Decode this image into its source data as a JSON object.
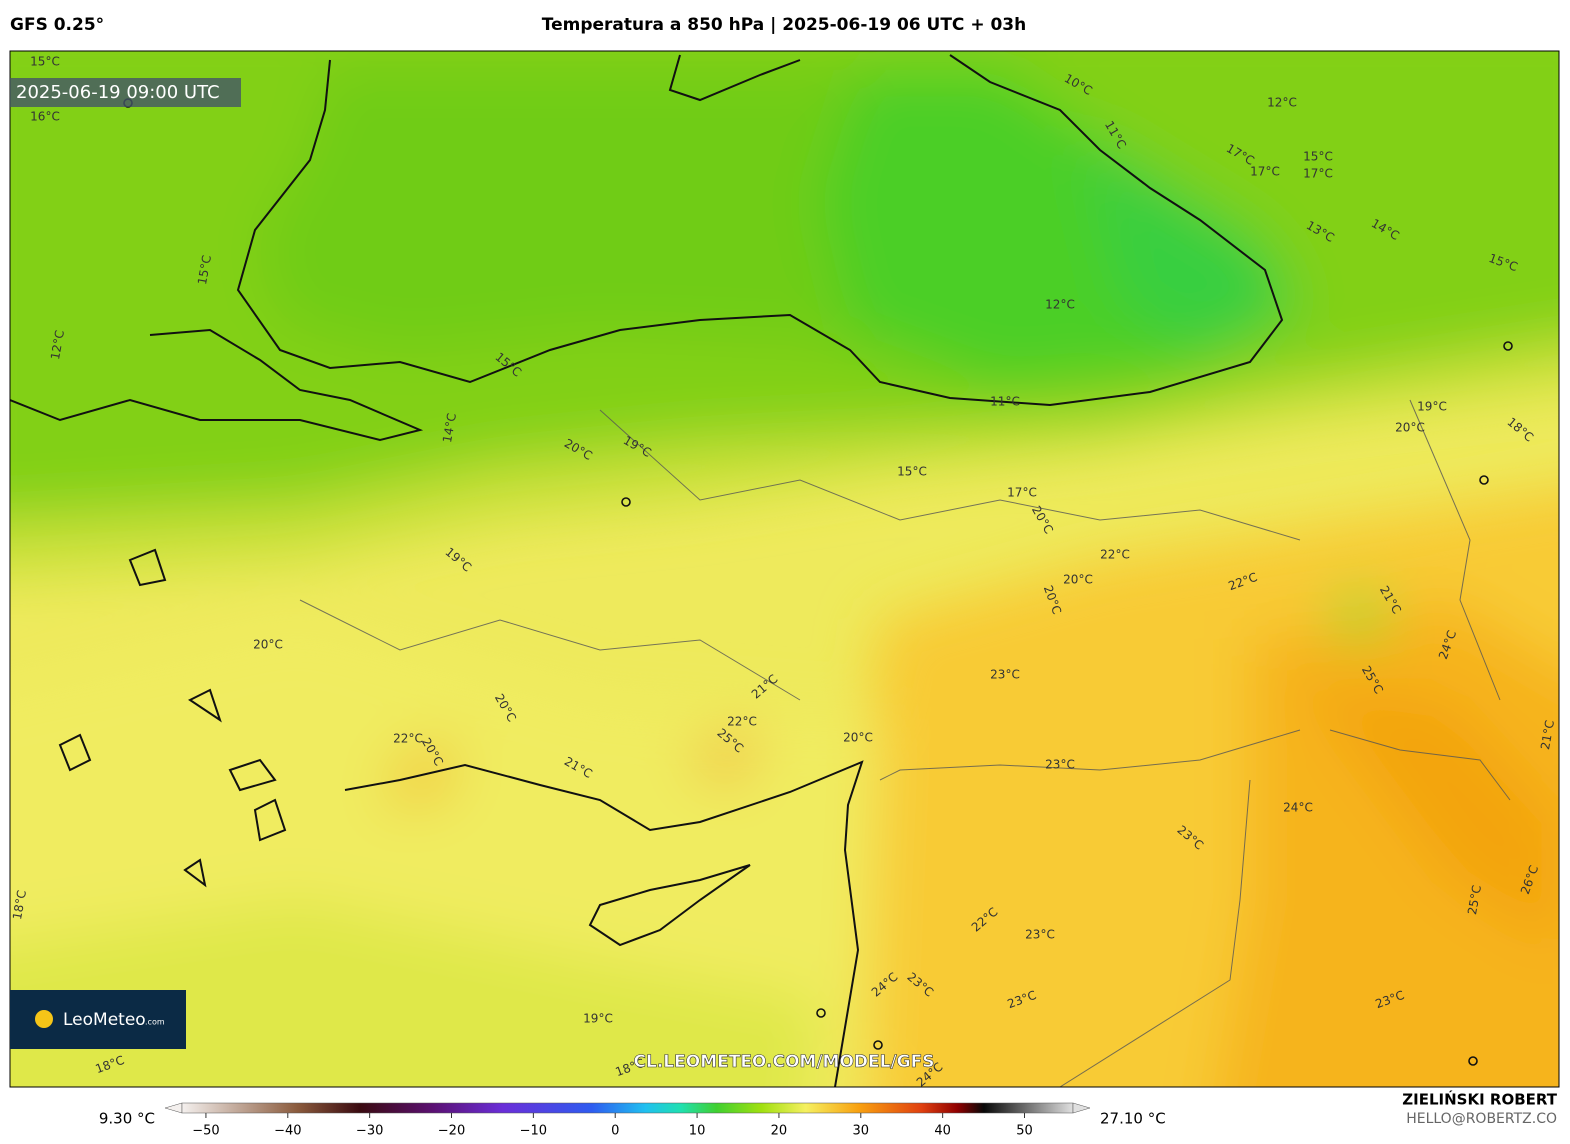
{
  "header": {
    "model": "GFS 0.25°",
    "title": "Temperatura a 850 hPa | 2025-06-19 06 UTC + 03h"
  },
  "map": {
    "timestamp": "2025-06-19 09:00 UTC",
    "logo_name": "LeoMeteo",
    "logo_suffix": ".com",
    "watermark": "CL.LEOMETEO.COM/MODEL/GFS",
    "contour_labels": [
      "10°C",
      "11°C",
      "12°C",
      "17°C",
      "17°C",
      "15°C",
      "17°C",
      "13°C",
      "14°C",
      "15°C",
      "12°C",
      "15°C",
      "11°C",
      "19°C",
      "20°C",
      "18°C",
      "14°C",
      "20°C",
      "19°C",
      "15°C",
      "17°C",
      "20°C",
      "22°C",
      "20°C",
      "22°C",
      "20°C",
      "21°C",
      "19°C",
      "24°C",
      "20°C",
      "23°C",
      "21°C",
      "25°C",
      "20°C",
      "22°C",
      "25°C",
      "20°C",
      "21°C",
      "22°C",
      "20°C",
      "21°C",
      "23°C",
      "24°C",
      "23°C",
      "26°C",
      "25°C",
      "18°C",
      "22°C",
      "23°C",
      "24°C",
      "23°C",
      "23°C",
      "23°C",
      "19°C",
      "18°C",
      "18°C",
      "24°C",
      "16°C",
      "15°C",
      "15°C",
      "12°C"
    ]
  },
  "colorbar": {
    "min_label": "9.30 °C",
    "max_label": "27.10 °C",
    "lim": [
      -55,
      58
    ],
    "ticks": [
      {
        "value": -50,
        "label": "−50"
      },
      {
        "value": -40,
        "label": "−40"
      },
      {
        "value": -30,
        "label": "−30"
      },
      {
        "value": -20,
        "label": "−20"
      },
      {
        "value": -10,
        "label": "−10"
      },
      0,
      10,
      20,
      30,
      40,
      50
    ]
  },
  "footer": {
    "author": "ZIELIŃSKI ROBERT",
    "email": "HELLO@ROBERTZ.CO"
  }
}
